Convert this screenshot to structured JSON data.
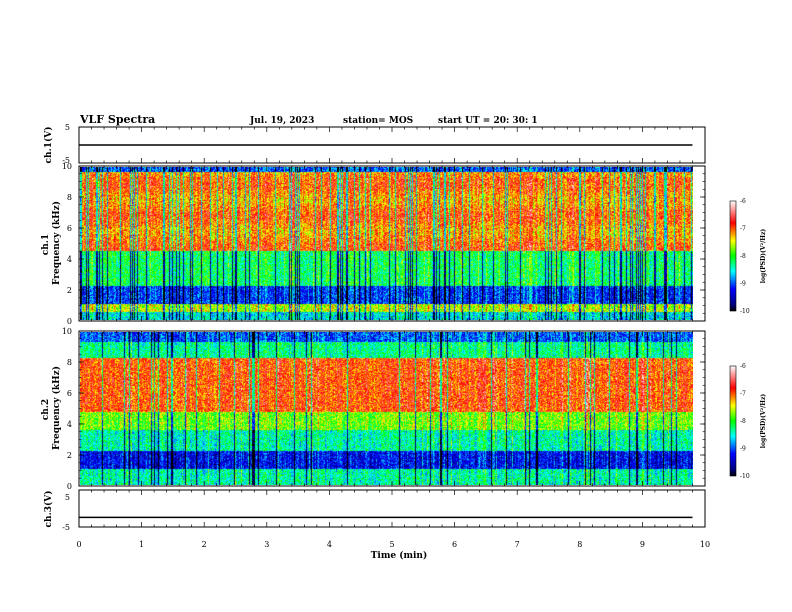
{
  "header": {
    "title": "VLF Spectra",
    "date": "Jul. 19, 2023",
    "station": "station= MOS",
    "start": "start  UT =   20: 30: 1"
  },
  "chart_data": [
    {
      "type": "line",
      "panel": "ch1-voltage",
      "ylabel": "ch.1(V)",
      "ylim": [
        -5,
        5
      ],
      "yticks": [
        "5",
        "-5"
      ],
      "xlim": [
        0,
        10
      ],
      "series": [
        {
          "x": [
            0,
            9.8
          ],
          "values": [
            0,
            0
          ]
        }
      ]
    },
    {
      "type": "heatmap",
      "panel": "ch1-spectrogram",
      "ylabel": "ch.1\nFrequency (kHz)",
      "ylim": [
        0,
        10
      ],
      "yticks": [
        "0",
        "2",
        "4",
        "6",
        "8",
        "10"
      ],
      "xlim": [
        0,
        10
      ],
      "data_extent_min": 9.8,
      "colorbar": {
        "range": [
          -10,
          -6
        ],
        "ticks": [
          "-6",
          "-7",
          "-8",
          "-9",
          "-10"
        ],
        "label": "log(PSD)(V²/Hz)"
      }
    },
    {
      "type": "heatmap",
      "panel": "ch2-spectrogram",
      "ylabel": "ch.2\nFrequency (kHz)",
      "ylim": [
        0,
        10
      ],
      "yticks": [
        "0",
        "2",
        "4",
        "6",
        "8",
        "10"
      ],
      "xlim": [
        0,
        10
      ],
      "data_extent_min": 9.8,
      "colorbar": {
        "range": [
          -10,
          -6
        ],
        "ticks": [
          "-6",
          "-7",
          "-8",
          "-9",
          "-10"
        ],
        "label": "log(PSD)(V²/Hz)"
      }
    },
    {
      "type": "line",
      "panel": "ch3-voltage",
      "ylabel": "ch.3(V)",
      "ylim": [
        -5,
        5
      ],
      "yticks": [
        "5",
        "-5"
      ],
      "xlim": [
        0,
        10
      ],
      "xticks": [
        "0",
        "1",
        "2",
        "3",
        "4",
        "5",
        "6",
        "7",
        "8",
        "9",
        "10"
      ],
      "xlabel": "Time (min)",
      "series": [
        {
          "x": [
            0,
            9.8
          ],
          "values": [
            -2.4,
            -2.4
          ]
        }
      ]
    }
  ]
}
